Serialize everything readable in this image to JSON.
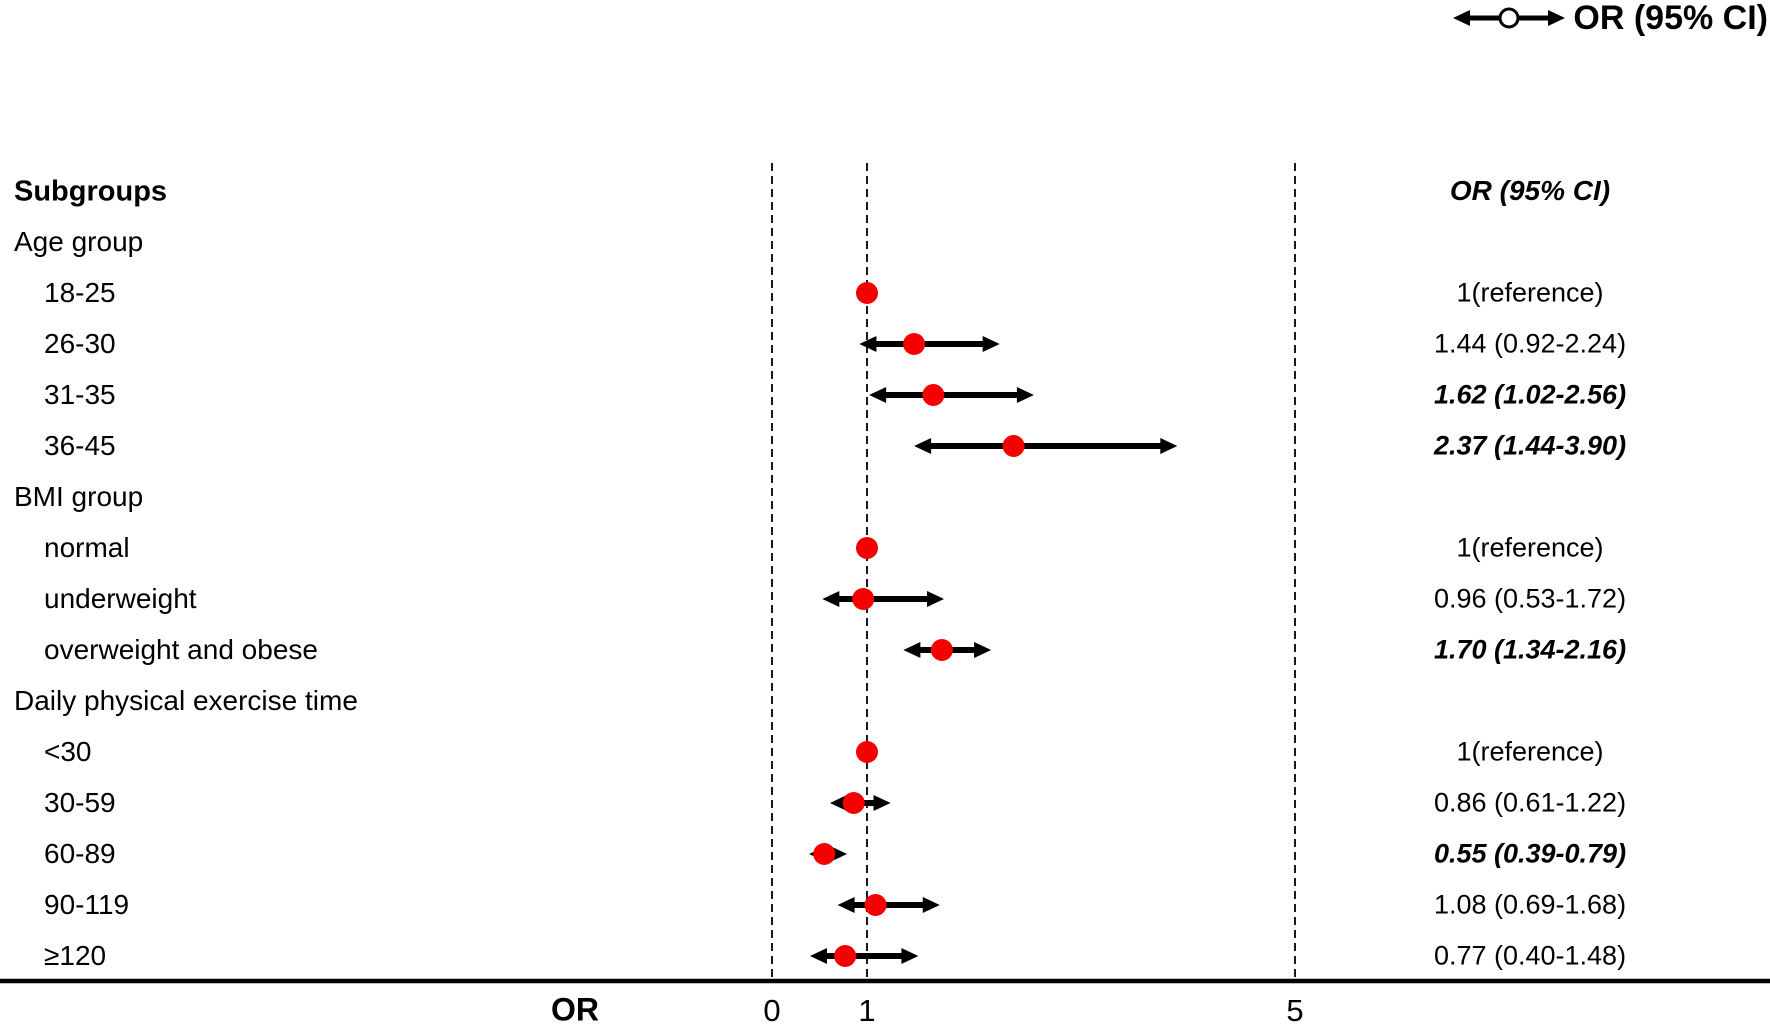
{
  "legend": {
    "label": "OR (95% CI)"
  },
  "columns": {
    "left_header": "Subgroups",
    "right_header": "OR (95% CI)"
  },
  "axis": {
    "label": "OR",
    "ticks": [
      0,
      1,
      5
    ]
  },
  "colors": {
    "marker": "#f40000",
    "line": "#000000",
    "gridline": "#1a1a1a"
  },
  "chart_data": {
    "type": "forest",
    "title": "",
    "xlabel": "OR",
    "x_ticks": [
      0,
      1,
      5
    ],
    "x_range": [
      0,
      5
    ],
    "gridlines_dashed_at": [
      0,
      1,
      5
    ],
    "legend_entry": "OR (95% CI)",
    "rows": [
      {
        "type": "group",
        "label": "Age group"
      },
      {
        "type": "item",
        "label": "18-25",
        "or": 1,
        "reference": true,
        "value_text": "1(reference)",
        "significant": false
      },
      {
        "type": "item",
        "label": "26-30",
        "or": 1.44,
        "lo": 0.92,
        "hi": 2.24,
        "value_text": "1.44 (0.92-2.24)",
        "significant": false
      },
      {
        "type": "item",
        "label": "31-35",
        "or": 1.62,
        "lo": 1.02,
        "hi": 2.56,
        "value_text": "1.62 (1.02-2.56)",
        "significant": true
      },
      {
        "type": "item",
        "label": "36-45",
        "or": 2.37,
        "lo": 1.44,
        "hi": 3.9,
        "value_text": "2.37 (1.44-3.90)",
        "significant": true
      },
      {
        "type": "group",
        "label": "BMI group"
      },
      {
        "type": "item",
        "label": "normal",
        "or": 1,
        "reference": true,
        "value_text": "1(reference)",
        "significant": false
      },
      {
        "type": "item",
        "label": "underweight",
        "or": 0.96,
        "lo": 0.53,
        "hi": 1.72,
        "value_text": "0.96 (0.53-1.72)",
        "significant": false
      },
      {
        "type": "item",
        "label": "overweight and obese",
        "or": 1.7,
        "lo": 1.34,
        "hi": 2.16,
        "value_text": "1.70 (1.34-2.16)",
        "significant": true
      },
      {
        "type": "group",
        "label": "Daily physical exercise time"
      },
      {
        "type": "item",
        "label": "<30",
        "or": 1,
        "reference": true,
        "value_text": "1(reference)",
        "significant": false
      },
      {
        "type": "item",
        "label": "30-59",
        "or": 0.86,
        "lo": 0.61,
        "hi": 1.22,
        "value_text": "0.86 (0.61-1.22)",
        "significant": false
      },
      {
        "type": "item",
        "label": "60-89",
        "or": 0.55,
        "lo": 0.39,
        "hi": 0.79,
        "value_text": "0.55 (0.39-0.79)",
        "significant": true
      },
      {
        "type": "item",
        "label": "90-119",
        "or": 1.08,
        "lo": 0.69,
        "hi": 1.68,
        "value_text": "1.08 (0.69-1.68)",
        "significant": false
      },
      {
        "type": "item",
        "label": "≥120",
        "or": 0.77,
        "lo": 0.4,
        "hi": 1.48,
        "value_text": "0.77 (0.40-1.48)",
        "significant": false
      }
    ]
  }
}
